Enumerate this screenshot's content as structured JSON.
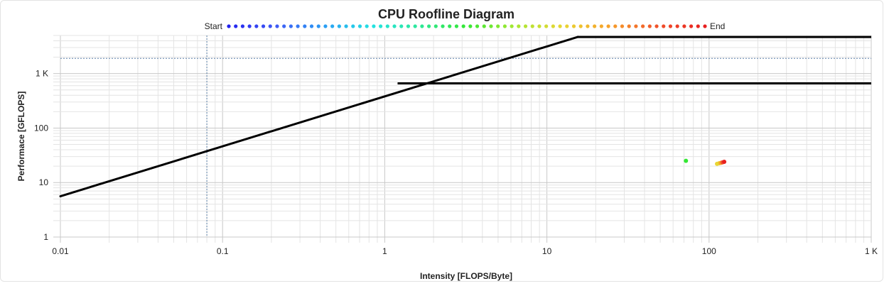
{
  "chart_data": {
    "type": "scatter",
    "title": "CPU Roofline Diagram",
    "xlabel": "Intensity [FLOPS/Byte]",
    "ylabel": "Performace [GFLOPS]",
    "x_scale": "log",
    "y_scale": "log",
    "xlim": [
      0.01,
      1000
    ],
    "ylim": [
      1,
      5000
    ],
    "x_ticks": [
      0.01,
      0.1,
      1,
      10,
      100,
      1000
    ],
    "x_tick_labels": [
      "0.01",
      "0.1",
      "1",
      "10",
      "100",
      "1 K"
    ],
    "y_ticks": [
      1,
      10,
      100,
      1000
    ],
    "y_tick_labels": [
      "1",
      "10",
      "100",
      "1 K"
    ],
    "grid": true,
    "legend": {
      "placement": "top",
      "start_label": "Start",
      "end_label": "End",
      "colormap": [
        "#2222ee",
        "#3f5bf5",
        "#2a9df4",
        "#23e3e3",
        "#2ee89a",
        "#33e833",
        "#a7e833",
        "#e8d633",
        "#f7a02a",
        "#f0522a",
        "#e82020"
      ],
      "dot_count": 70
    },
    "roofline": {
      "color": "#000000",
      "memory_bandwidth_segment": {
        "x": [
          0.01,
          15.5
        ],
        "y": [
          5.6,
          4700
        ]
      },
      "upper_ceiling": {
        "x": [
          15.5,
          1000
        ],
        "y": 4700
      },
      "lower_ceiling": {
        "x": [
          1.2,
          1000
        ],
        "y": 660
      },
      "lower_ceiling_knee": {
        "x": 1.2,
        "y": 660
      }
    },
    "reference_lines": {
      "color": "#5a7fa8",
      "vertical_x": 0.08,
      "horizontal_y": 1900
    },
    "series": [
      {
        "points": [
          {
            "x": 72,
            "y": 25,
            "color": "#33e833"
          },
          {
            "x": 112,
            "y": 22,
            "color": "#e8d633"
          },
          {
            "x": 115,
            "y": 22.5,
            "color": "#e8d633"
          },
          {
            "x": 118,
            "y": 23,
            "color": "#f7a02a"
          },
          {
            "x": 121,
            "y": 23.5,
            "color": "#f0522a"
          },
          {
            "x": 124,
            "y": 24,
            "color": "#e82020"
          }
        ]
      }
    ]
  }
}
